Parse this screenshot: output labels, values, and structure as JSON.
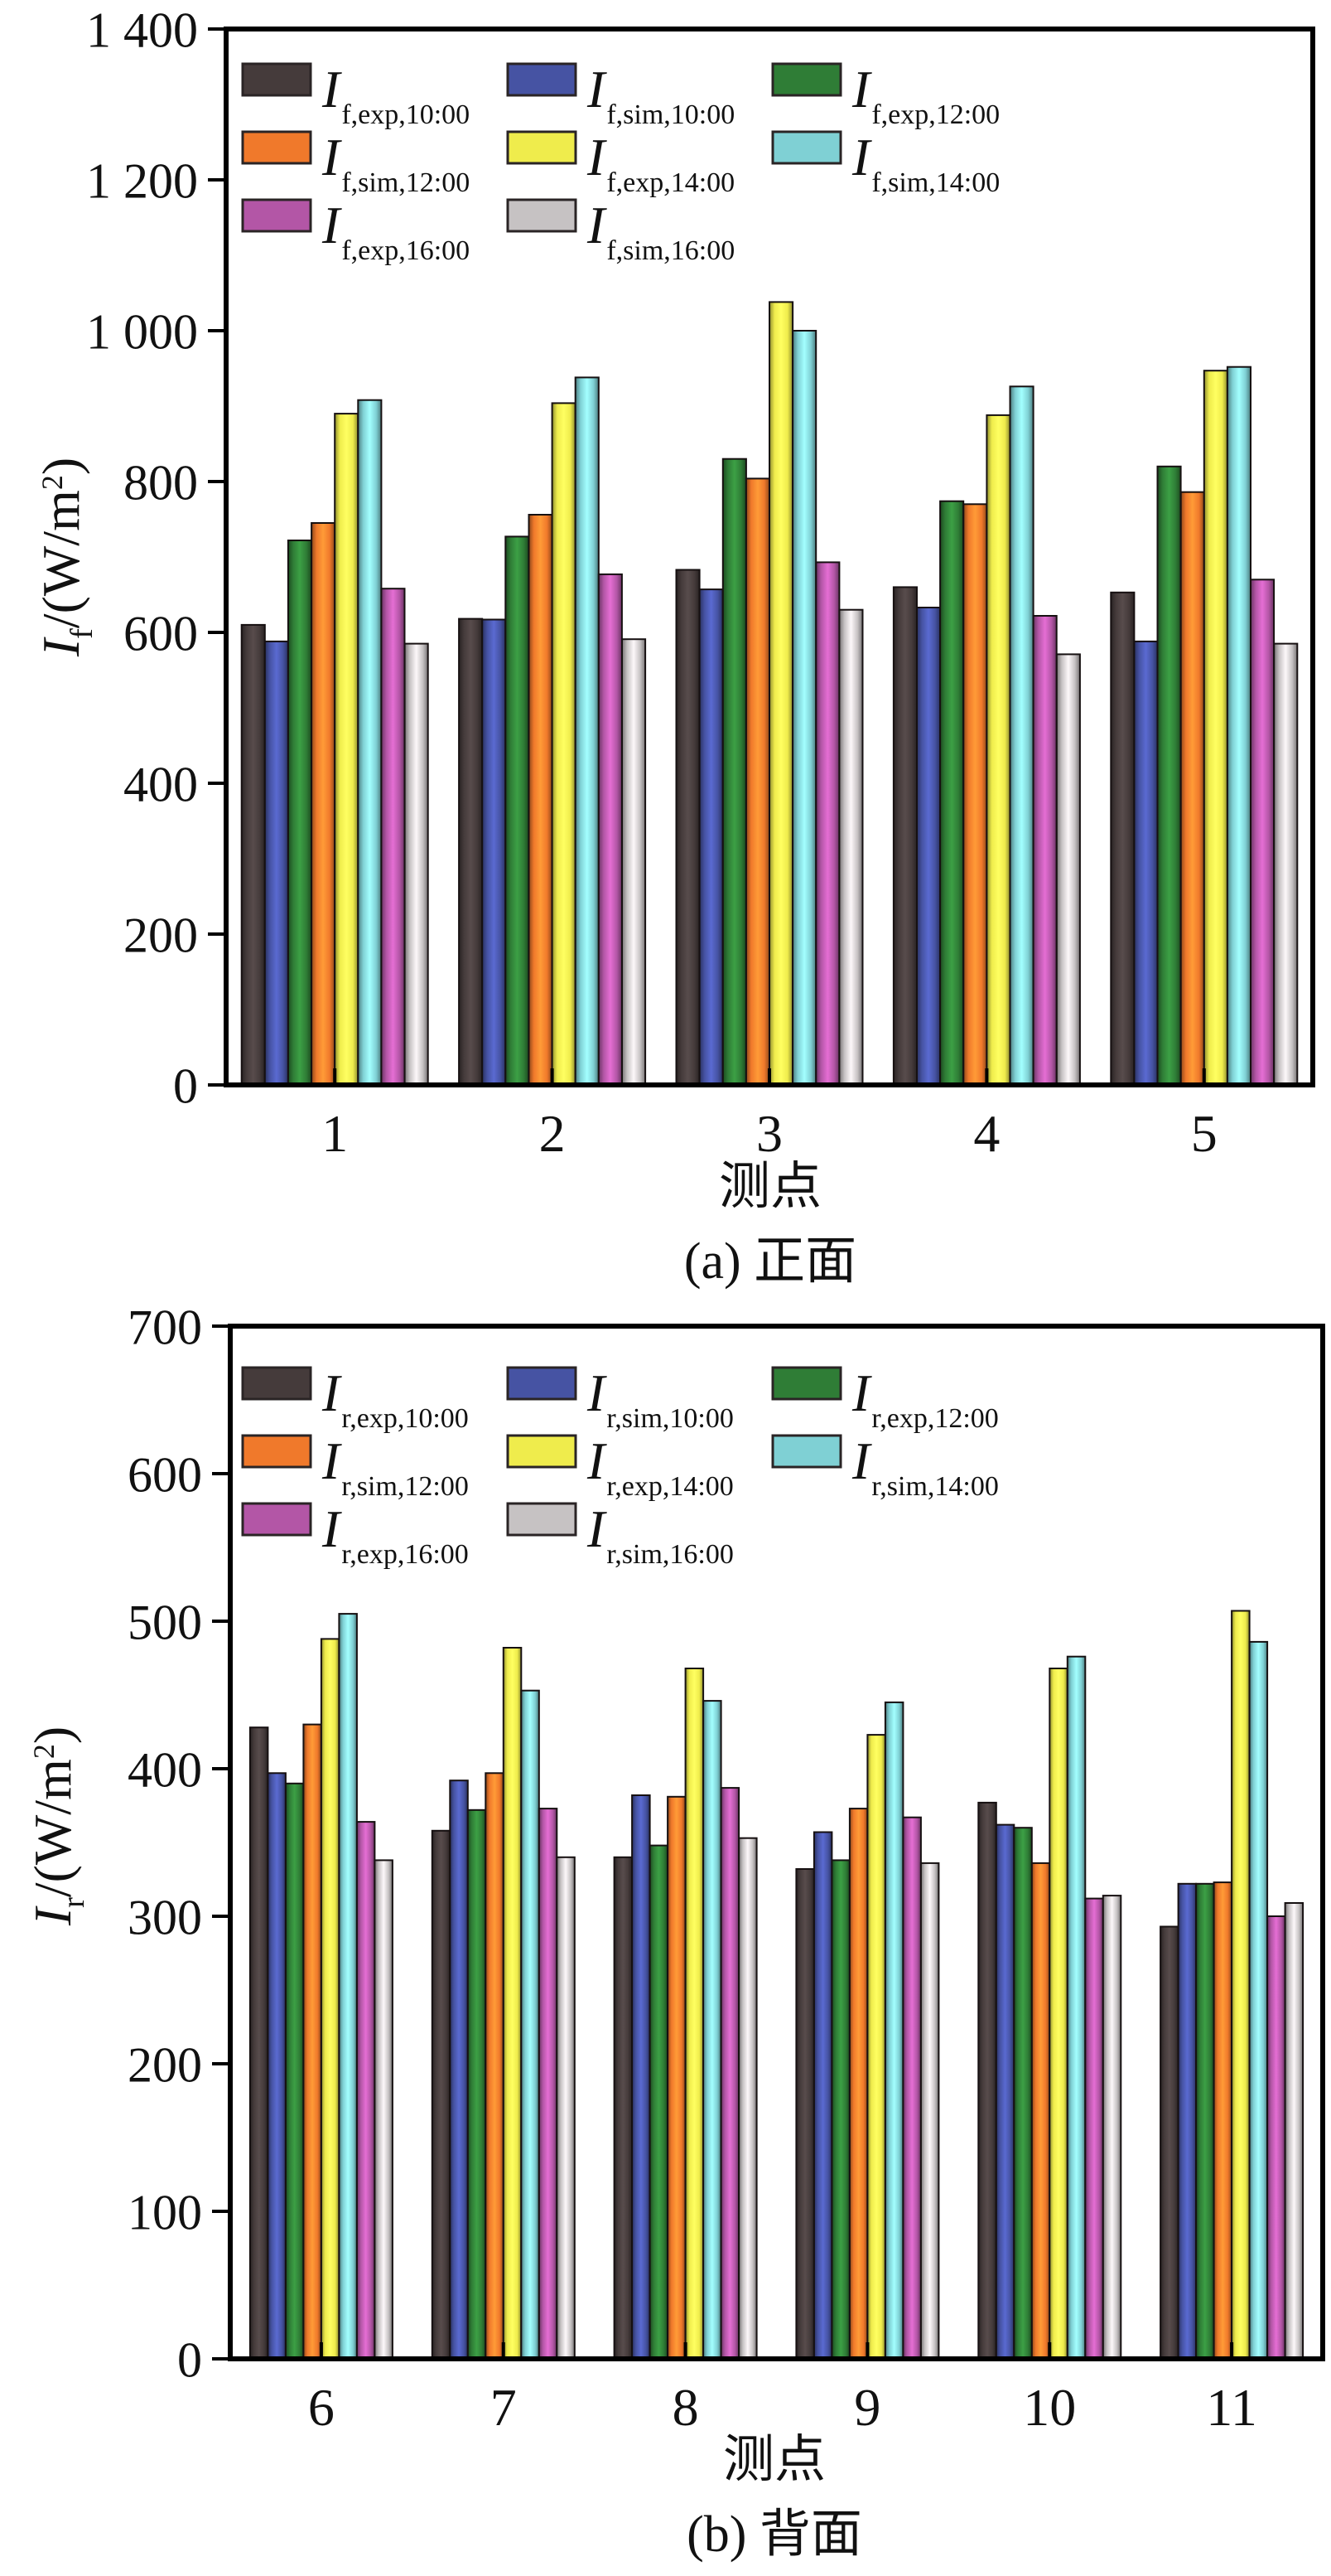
{
  "figure": {
    "background": "#ffffff",
    "text_color": "#111111",
    "axis_color": "#000000"
  },
  "chart_data": [
    {
      "id": "a",
      "type": "bar",
      "caption": "(a) 正面",
      "xlabel": "测点",
      "ylabel": {
        "symbol": "I",
        "sub": "f",
        "rest": "/(W/m",
        "sup": "2",
        "close": ")"
      },
      "ylim": [
        0,
        1400
      ],
      "yticks": [
        0,
        200,
        400,
        600,
        800,
        1000,
        1200,
        1400
      ],
      "ytick_labels": [
        "0",
        "200",
        "400",
        "600",
        "800",
        "1 000",
        "1 200",
        "1 400"
      ],
      "categories": [
        "1",
        "2",
        "3",
        "4",
        "5"
      ],
      "grid": false,
      "legend_position": "upper-left-inside",
      "series": [
        {
          "key": "f,exp,10:00",
          "symbol": "I",
          "color": "#453b3b",
          "values": [
            610,
            618,
            683,
            660,
            653
          ]
        },
        {
          "key": "f,sim,10:00",
          "symbol": "I",
          "color": "#4653a3",
          "values": [
            588,
            617,
            657,
            633,
            588
          ]
        },
        {
          "key": "f,exp,12:00",
          "symbol": "I",
          "color": "#2f7d36",
          "values": [
            722,
            727,
            830,
            774,
            820
          ]
        },
        {
          "key": "f,sim,12:00",
          "symbol": "I",
          "color": "#f0792b",
          "values": [
            745,
            756,
            804,
            770,
            786
          ]
        },
        {
          "key": "f,exp,14:00",
          "symbol": "I",
          "color": "#efec4c",
          "values": [
            890,
            904,
            1038,
            888,
            947
          ]
        },
        {
          "key": "f,sim,14:00",
          "symbol": "I",
          "color": "#7fd0d4",
          "values": [
            908,
            938,
            1000,
            926,
            952
          ]
        },
        {
          "key": "f,exp,16:00",
          "symbol": "I",
          "color": "#b356a6",
          "values": [
            658,
            677,
            693,
            622,
            670
          ]
        },
        {
          "key": "f,sim,16:00",
          "symbol": "I",
          "color": "#c6c2c3",
          "values": [
            585,
            591,
            630,
            571,
            585
          ]
        }
      ]
    },
    {
      "id": "b",
      "type": "bar",
      "caption": "(b) 背面",
      "xlabel": "测点",
      "ylabel": {
        "symbol": "I",
        "sub": "r",
        "rest": "/(W/m",
        "sup": "2",
        "close": ")"
      },
      "ylim": [
        0,
        700
      ],
      "yticks": [
        0,
        100,
        200,
        300,
        400,
        500,
        600,
        700
      ],
      "ytick_labels": [
        "0",
        "100",
        "200",
        "300",
        "400",
        "500",
        "600",
        "700"
      ],
      "categories": [
        "6",
        "7",
        "8",
        "9",
        "10",
        "11"
      ],
      "grid": false,
      "legend_position": "upper-left-inside",
      "series": [
        {
          "key": "r,exp,10:00",
          "symbol": "I",
          "color": "#453b3b",
          "values": [
            428,
            358,
            340,
            332,
            377,
            293
          ]
        },
        {
          "key": "r,sim,10:00",
          "symbol": "I",
          "color": "#4653a3",
          "values": [
            397,
            392,
            382,
            357,
            362,
            322
          ]
        },
        {
          "key": "r,exp,12:00",
          "symbol": "I",
          "color": "#2f7d36",
          "values": [
            390,
            372,
            348,
            338,
            360,
            322
          ]
        },
        {
          "key": "r,sim,12:00",
          "symbol": "I",
          "color": "#f0792b",
          "values": [
            430,
            397,
            381,
            373,
            336,
            323
          ]
        },
        {
          "key": "r,exp,14:00",
          "symbol": "I",
          "color": "#efec4c",
          "values": [
            488,
            482,
            468,
            423,
            468,
            507
          ]
        },
        {
          "key": "r,sim,14:00",
          "symbol": "I",
          "color": "#7fd0d4",
          "values": [
            505,
            453,
            446,
            445,
            476,
            486
          ]
        },
        {
          "key": "r,exp,16:00",
          "symbol": "I",
          "color": "#b356a6",
          "values": [
            364,
            373,
            387,
            367,
            312,
            300
          ]
        },
        {
          "key": "r,sim,16:00",
          "symbol": "I",
          "color": "#c6c2c3",
          "values": [
            338,
            340,
            353,
            336,
            314,
            309
          ]
        }
      ]
    }
  ]
}
